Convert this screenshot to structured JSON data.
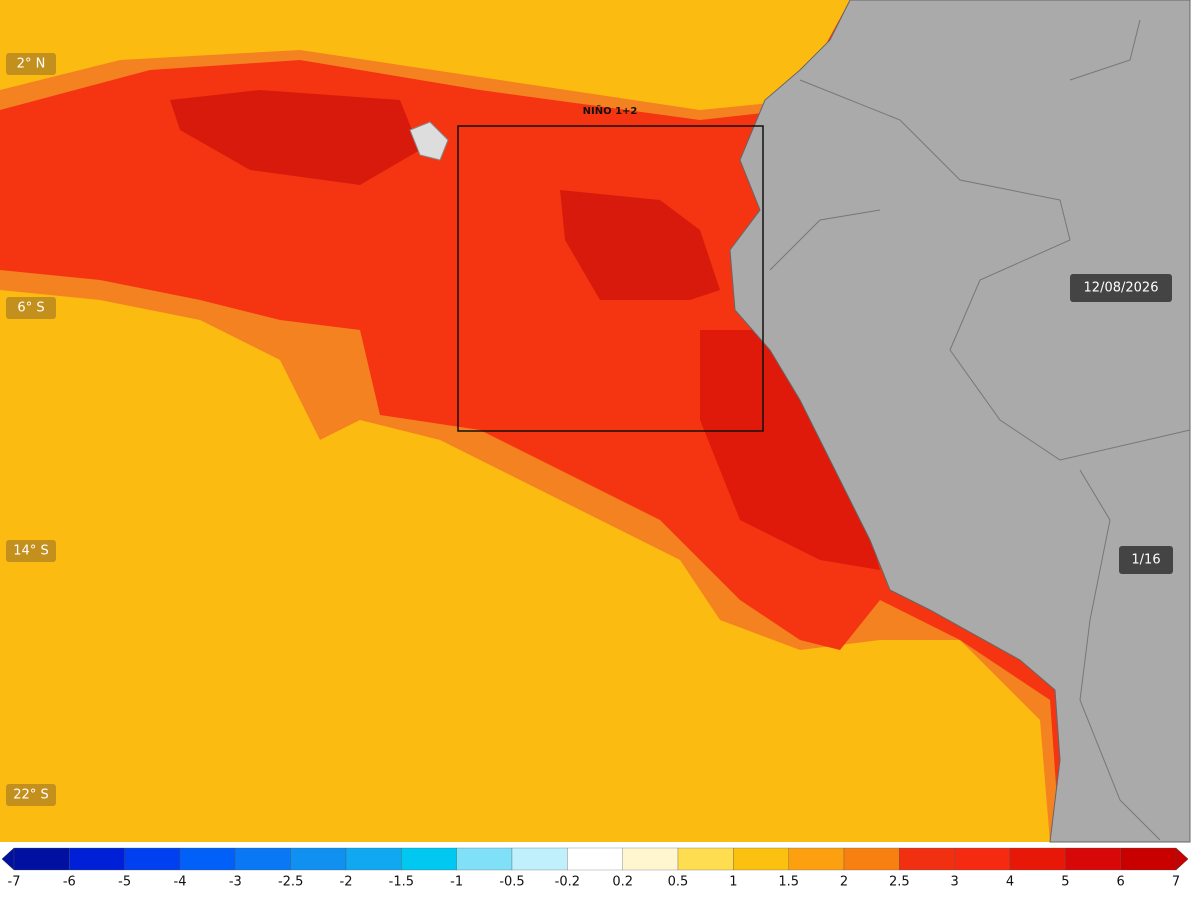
{
  "map": {
    "lat_labels": [
      "2° N",
      "6° S",
      "14° S",
      "22° S"
    ],
    "region_label": "NIÑO 1+2",
    "date": "12/08/2026",
    "frame": "1/16"
  },
  "legend": {
    "ticks": [
      -7,
      -6,
      -5,
      -4,
      -3,
      -2.5,
      -2,
      -1.5,
      -1,
      -0.5,
      -0.2,
      0.2,
      0.5,
      1,
      1.5,
      2,
      2.5,
      3,
      4,
      5,
      6,
      7
    ],
    "colors": [
      "#0010a0",
      "#0020d8",
      "#0040f0",
      "#0060f8",
      "#0a78f5",
      "#1090f0",
      "#10a8f0",
      "#00c8f0",
      "#80e0f8",
      "#c0f0fc",
      "#ffffff",
      "#fff6d0",
      "#ffdd50",
      "#fcc010",
      "#fca010",
      "#f88010",
      "#f03010",
      "#f52a10",
      "#e81808",
      "#d80808",
      "#c80000"
    ]
  }
}
